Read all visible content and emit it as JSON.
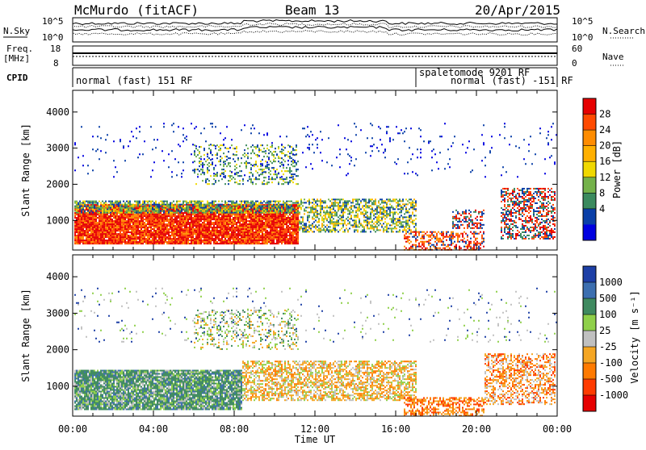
{
  "header": {
    "site": "McMurdo (fitACF)",
    "beam": "Beam 13",
    "date": "20/Apr/2015"
  },
  "side_labels": {
    "nsky": "N.Sky",
    "nsearch": "N.Search",
    "freq": "Freq.",
    "freq_unit": "[MHz]",
    "nave": "Nave",
    "cpid": "CPID"
  },
  "noise_panel": {
    "left_ticks": [
      "10^5",
      "10^0"
    ],
    "right_ticks": [
      "10^5",
      "10^0"
    ]
  },
  "freq_panel": {
    "left_ticks": [
      "18",
      "8"
    ],
    "right_ticks": [
      "60",
      "0"
    ]
  },
  "cpid_panel": {
    "segments": [
      {
        "label": "normal (fast) 151 RF",
        "start_hour": 0,
        "end_hour": 17.0
      },
      {
        "label": "spaletomode 9201 RF",
        "start_hour": 17.0,
        "end_hour": 18.0
      },
      {
        "label": "normal (fast) -151 RF",
        "start_hour": 18.0,
        "end_hour": 24
      }
    ]
  },
  "time_axis": {
    "ticks": [
      "00:00",
      "04:00",
      "08:00",
      "12:00",
      "16:00",
      "20:00",
      "00:00"
    ],
    "label": "Time UT"
  },
  "chart_data": [
    {
      "type": "heatmap",
      "name": "power",
      "ylabel": "Slant Range [km]",
      "yticks": [
        1000,
        2000,
        3000,
        4000
      ],
      "ylim": [
        180,
        4600
      ],
      "xlim_hours": [
        0,
        24
      ],
      "colorbar": {
        "label": "Power [dB]",
        "ticks": [
          "28",
          "24",
          "20",
          "16",
          "12",
          "8",
          "4"
        ],
        "colors": [
          "#e60000",
          "#ff4a00",
          "#ff8c00",
          "#ffb000",
          "#f0d800",
          "#74b24a",
          "#3b8a5e",
          "#0a3fa8",
          "#0000e0"
        ]
      }
    },
    {
      "type": "heatmap",
      "name": "velocity",
      "ylabel": "Slant Range [km]",
      "yticks": [
        1000,
        2000,
        3000,
        4000
      ],
      "ylim": [
        180,
        4600
      ],
      "xlim_hours": [
        0,
        24
      ],
      "colorbar": {
        "label": "Velocity [m s⁻¹]",
        "ticks": [
          "1000",
          "500",
          "100",
          "25",
          "-25",
          "-100",
          "-500",
          "-1000"
        ],
        "colors": [
          "#1d3fa6",
          "#3c6fb0",
          "#3f8a60",
          "#8fd04a",
          "#c0c0c0",
          "#f5a623",
          "#ff7a00",
          "#ff3b00",
          "#e60000"
        ]
      }
    }
  ]
}
